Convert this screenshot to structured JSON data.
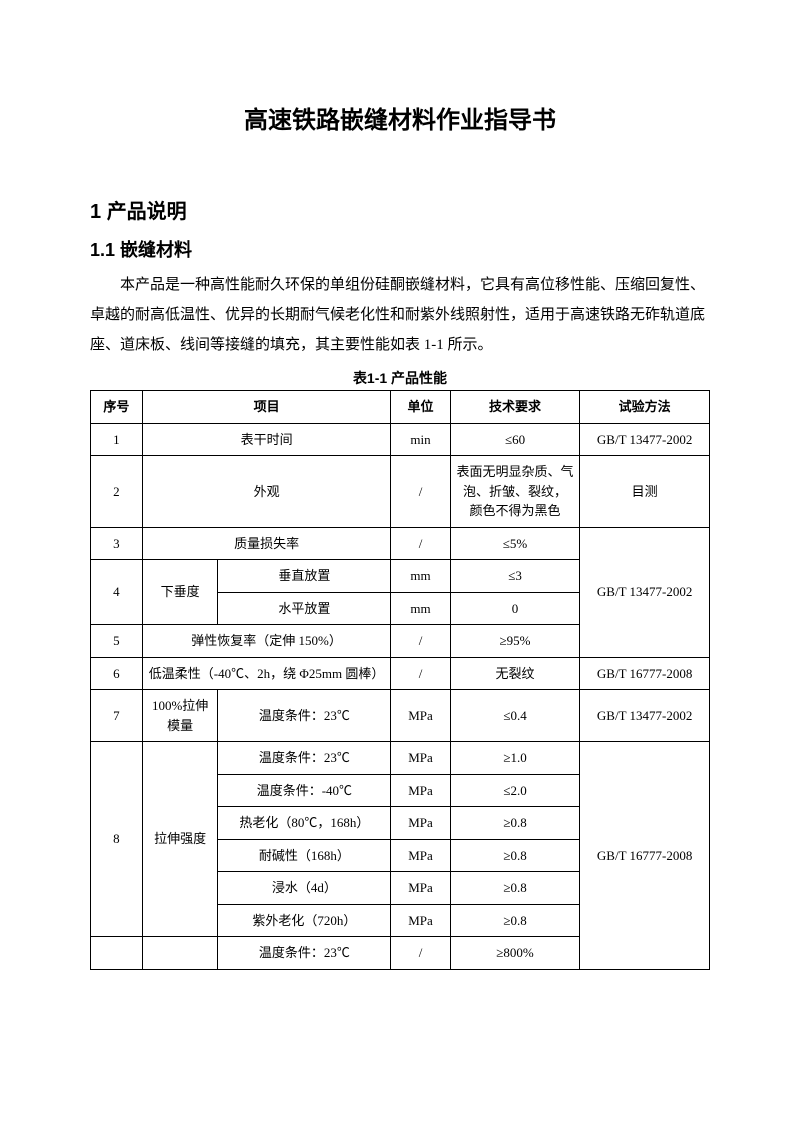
{
  "doc": {
    "title": "高速铁路嵌缝材料作业指导书",
    "section1_num": "1",
    "section1_label": "产品说明",
    "section1_1_num": "1.1",
    "section1_1_label": "嵌缝材料",
    "para1": "本产品是一种高性能耐久环保的单组份硅酮嵌缝材料，它具有高位移性能、压缩回复性、卓越的耐高低温性、优异的长期耐气候老化性和耐紫外线照射性，适用于高速铁路无砟轨道底座、道床板、线间等接缝的填充，其主要性能如表 1-1 所示。",
    "table_caption": "表1-1 产品性能"
  },
  "head": {
    "seq": "序号",
    "item": "项目",
    "unit": "单位",
    "req": "技术要求",
    "method": "试验方法"
  },
  "rows": {
    "r1": {
      "seq": "1",
      "item": "表干时间",
      "unit": "min",
      "req": "≤60",
      "method": "GB/T 13477-2002"
    },
    "r2": {
      "seq": "2",
      "item": "外观",
      "unit": "/",
      "req": "表面无明显杂质、气泡、折皱、裂纹，\n颜色不得为黑色",
      "method": "目测"
    },
    "r3": {
      "seq": "3",
      "item": "质量损失率",
      "unit": "/",
      "req": "≤5%"
    },
    "r4": {
      "seq": "4",
      "item_group": "下垂度",
      "sub1": "垂直放置",
      "unit1": "mm",
      "req1": "≤3",
      "sub2": "水平放置",
      "unit2": "mm",
      "req2": "0",
      "method": "GB/T 13477-2002"
    },
    "r5": {
      "seq": "5",
      "item": "弹性恢复率（定伸 150%）",
      "unit": "/",
      "req": "≥95%"
    },
    "r6": {
      "seq": "6",
      "item": "低温柔性（-40℃、2h，绕 Φ25mm 圆棒）",
      "unit": "/",
      "req": "无裂纹",
      "method": "GB/T 16777-2008"
    },
    "r7": {
      "seq": "7",
      "item_group": "100%拉伸模量",
      "sub": "温度条件：23℃",
      "unit": "MPa",
      "req": "≤0.4",
      "method": "GB/T 13477-2002"
    },
    "r8": {
      "seq": "8",
      "item_group": "拉伸强度",
      "a_sub": "温度条件：23℃",
      "a_unit": "MPa",
      "a_req": "≥1.0",
      "b_sub": "温度条件：-40℃",
      "b_unit": "MPa",
      "b_req": "≤2.0",
      "c_sub": "热老化（80℃，168h）",
      "c_unit": "MPa",
      "c_req": "≥0.8",
      "d_sub": "耐碱性（168h）",
      "d_unit": "MPa",
      "d_req": "≥0.8",
      "e_sub": "浸水（4d）",
      "e_unit": "MPa",
      "e_req": "≥0.8",
      "f_sub": "紫外老化（720h）",
      "f_unit": "MPa",
      "f_req": "≥0.8",
      "method": "GB/T 16777-2008"
    },
    "r9": {
      "sub": "温度条件：23℃",
      "unit": "/",
      "req": "≥800%"
    }
  }
}
